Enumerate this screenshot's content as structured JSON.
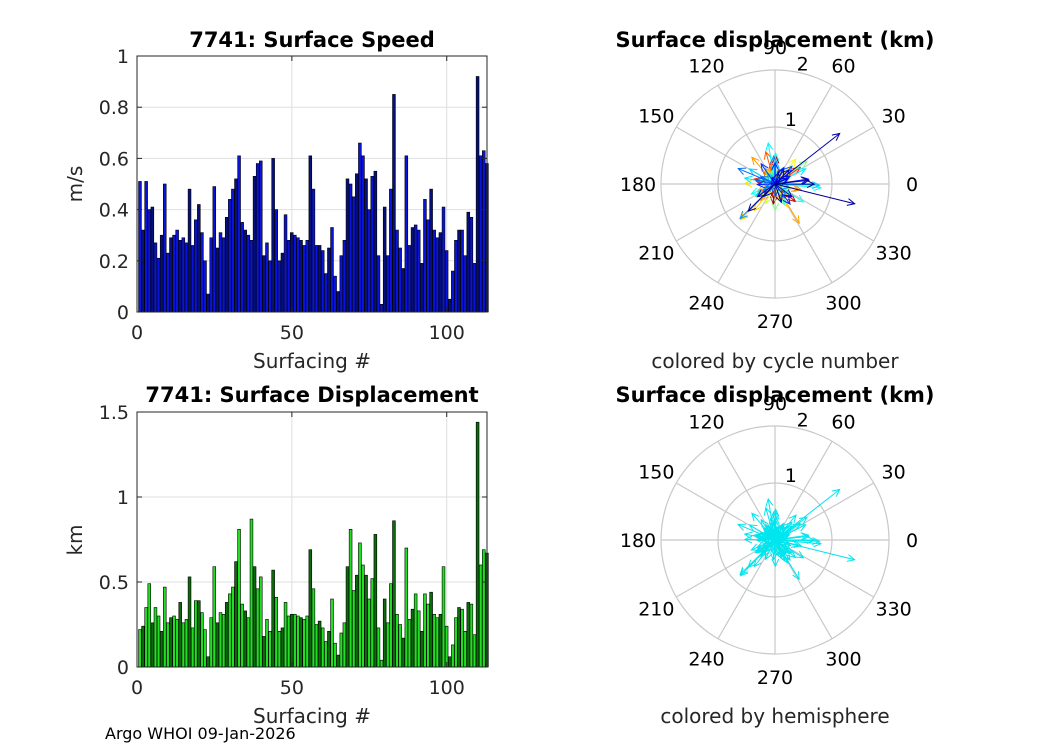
{
  "footer": "Argo WHOI 09-Jan-2026",
  "colors": {
    "speed_fill_light": "#0a14d8",
    "speed_fill_dark": "#06107a",
    "disp_fill_light": "#22dd22",
    "disp_fill_dark": "#0c6a0c",
    "cyan_arrow": "#00e5ee",
    "rose_grid": "#c8c8c8"
  },
  "chart_data": [
    {
      "id": "speed",
      "type": "bar",
      "title": "7741: Surface Speed",
      "xlabel": "Surfacing #",
      "ylabel": "m/s",
      "xlim": [
        0,
        113
      ],
      "ylim": [
        0,
        1
      ],
      "xticks": [
        "0",
        "50",
        "100"
      ],
      "yticks": [
        "0",
        "0.2",
        "0.4",
        "0.6",
        "0.8",
        "1"
      ],
      "grid": true,
      "values": [
        0.51,
        0.32,
        0.51,
        0.4,
        0.41,
        0.27,
        0.21,
        0.3,
        0.5,
        0.23,
        0.29,
        0.3,
        0.32,
        0.28,
        0.29,
        0.27,
        0.48,
        0.26,
        0.36,
        0.42,
        0.31,
        0.2,
        0.07,
        0.29,
        0.49,
        0.25,
        0.31,
        0.29,
        0.37,
        0.44,
        0.48,
        0.52,
        0.61,
        0.35,
        0.32,
        0.3,
        0.28,
        0.53,
        0.58,
        0.59,
        0.22,
        0.27,
        0.2,
        0.6,
        0.4,
        0.2,
        0.23,
        0.38,
        0.28,
        0.31,
        0.3,
        0.29,
        0.28,
        0.26,
        0.28,
        0.61,
        0.48,
        0.26,
        0.26,
        0.24,
        0.15,
        0.25,
        0.33,
        0.14,
        0.08,
        0.22,
        0.28,
        0.52,
        0.5,
        0.45,
        0.54,
        0.66,
        0.61,
        0.52,
        0.4,
        0.53,
        0.55,
        0.22,
        0.03,
        0.41,
        0.22,
        0.48,
        0.85,
        0.32,
        0.25,
        0.17,
        0.61,
        0.26,
        0.33,
        0.34,
        0.32,
        0.19,
        0.44,
        0.36,
        0.48,
        0.32,
        0.29,
        0.31,
        0.41,
        0.24,
        0.05,
        0.16,
        0.28,
        0.32,
        0.32,
        0.22,
        0.39,
        0.37,
        0.19,
        0.92,
        0.61,
        0.63,
        0.58
      ]
    },
    {
      "id": "displacement",
      "type": "bar",
      "title": "7741: Surface Displacement",
      "xlabel": "Surfacing #",
      "ylabel": "km",
      "xlim": [
        0,
        113
      ],
      "ylim": [
        0,
        1.5
      ],
      "xticks": [
        "0",
        "50",
        "100"
      ],
      "yticks": [
        "0",
        "0.5",
        "1",
        "1.5"
      ],
      "grid": true,
      "values": [
        0.22,
        0.24,
        0.35,
        0.49,
        0.26,
        0.35,
        0.3,
        0.21,
        0.47,
        0.26,
        0.29,
        0.3,
        0.28,
        0.38,
        0.26,
        0.28,
        0.53,
        0.23,
        0.39,
        0.39,
        0.32,
        0.22,
        0.06,
        0.29,
        0.59,
        0.26,
        0.32,
        0.31,
        0.38,
        0.43,
        0.47,
        0.62,
        0.81,
        0.37,
        0.33,
        0.29,
        0.87,
        0.59,
        0.46,
        0.53,
        0.18,
        0.28,
        0.21,
        0.57,
        0.41,
        0.21,
        0.23,
        0.38,
        0.3,
        0.31,
        0.31,
        0.3,
        0.29,
        0.28,
        0.3,
        0.69,
        0.46,
        0.25,
        0.27,
        0.23,
        0.15,
        0.21,
        0.4,
        0.14,
        0.07,
        0.2,
        0.26,
        0.59,
        0.81,
        0.45,
        0.54,
        0.73,
        0.6,
        0.54,
        0.4,
        0.52,
        0.78,
        0.23,
        0.04,
        0.4,
        0.26,
        0.49,
        0.86,
        0.31,
        0.25,
        0.17,
        0.7,
        0.28,
        0.34,
        0.43,
        0.33,
        0.21,
        0.43,
        0.37,
        0.44,
        0.31,
        0.29,
        0.31,
        0.59,
        0.24,
        0.06,
        0.13,
        0.29,
        0.35,
        0.34,
        0.21,
        0.38,
        0.37,
        0.19,
        1.44,
        0.6,
        0.69,
        0.67
      ]
    },
    {
      "id": "rose_cycle",
      "type": "compass",
      "title": "Surface displacement (km)",
      "caption": "colored by cycle number",
      "rmax": 2,
      "rlabels": [
        "1",
        "2"
      ],
      "angle_labels": [
        "0",
        "30",
        "60",
        "90",
        "120",
        "150",
        "180",
        "210",
        "240",
        "270",
        "300",
        "330"
      ],
      "coloring": "cycle"
    },
    {
      "id": "rose_hemisphere",
      "type": "compass",
      "title": "Surface displacement (km)",
      "caption": "colored by hemisphere",
      "rmax": 2,
      "rlabels": [
        "1",
        "2"
      ],
      "angle_labels": [
        "0",
        "30",
        "60",
        "90",
        "120",
        "150",
        "180",
        "210",
        "240",
        "270",
        "300",
        "330"
      ],
      "coloring": "hemisphere"
    }
  ]
}
